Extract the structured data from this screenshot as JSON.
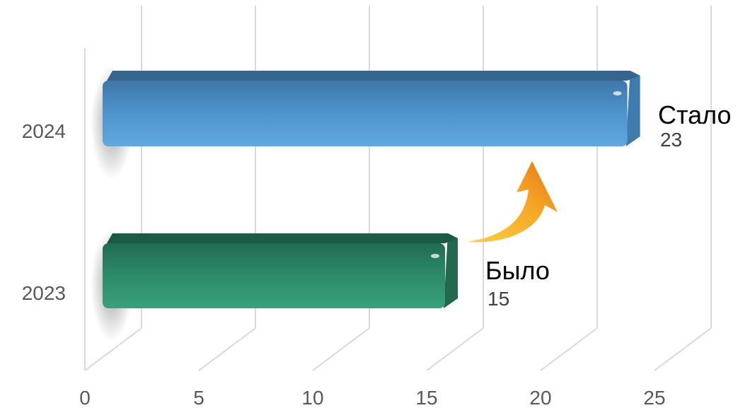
{
  "chart_data": {
    "type": "bar",
    "orientation": "horizontal",
    "style": "3d",
    "categories": [
      "2023",
      "2024"
    ],
    "values": [
      15,
      23
    ],
    "xlim": [
      0,
      25
    ],
    "xticks": [
      0,
      5,
      10,
      15,
      20,
      25
    ],
    "grid": true,
    "colors": {
      "2023": "#2f8f6f",
      "2024": "#4a90c8",
      "arrow": "#f0a020"
    },
    "annotations": [
      {
        "category": "2023",
        "label": "Было",
        "value": "15"
      },
      {
        "category": "2024",
        "label": "Стало",
        "value": "23"
      }
    ]
  }
}
